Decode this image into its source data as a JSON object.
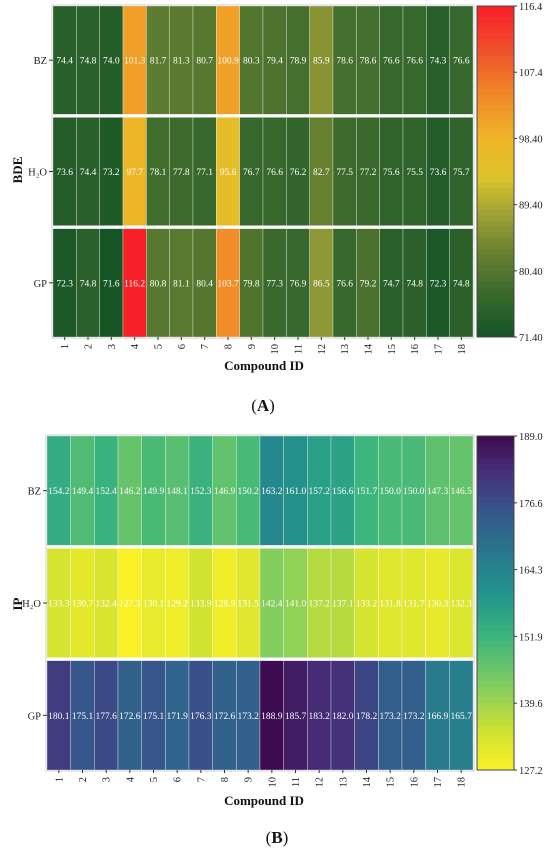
{
  "chart_data": [
    {
      "type": "heatmap",
      "panel_label": "A",
      "ylabel": "BDE",
      "xlabel": "Compound ID",
      "categories": [
        "1",
        "2",
        "3",
        "4",
        "5",
        "6",
        "7",
        "8",
        "9",
        "10",
        "11",
        "12",
        "13",
        "14",
        "15",
        "16",
        "17",
        "18"
      ],
      "rows": [
        "BZ",
        "H<sub>2</sub>O",
        "GP"
      ],
      "row_labels": [
        "BZ",
        "H₂O",
        "GP"
      ],
      "values": [
        [
          74.4,
          74.8,
          74.0,
          101.3,
          81.7,
          81.3,
          80.7,
          100.9,
          80.3,
          79.4,
          78.9,
          85.9,
          78.6,
          78.6,
          76.6,
          76.6,
          74.3,
          76.6
        ],
        [
          73.6,
          74.4,
          73.2,
          97.7,
          78.1,
          77.8,
          77.1,
          95.6,
          76.7,
          76.6,
          76.2,
          82.7,
          77.5,
          77.2,
          75.6,
          75.5,
          73.6,
          75.7
        ],
        [
          72.3,
          74.8,
          71.6,
          116.2,
          80.8,
          81.1,
          80.4,
          103.7,
          79.8,
          77.3,
          76.9,
          86.5,
          76.6,
          79.2,
          74.7,
          74.8,
          72.3,
          74.8
        ]
      ],
      "value_labels": [
        [
          "74.4",
          "74.8",
          "74.0",
          "101.3",
          "81.7",
          "81.3",
          "80.7",
          "100.9",
          "80.3",
          "79.4",
          "78.9",
          "85.9",
          "78.6",
          "78.6",
          "76.6",
          "76.6",
          "74.3",
          "76.6"
        ],
        [
          "73.6",
          "74.4",
          "73.2",
          "97.7",
          "78.1",
          "77.8",
          "77.1",
          "95.6",
          "76.7",
          "76.6",
          "76.2",
          "82.7",
          "77.5",
          "77.2",
          "75.6",
          "75.5",
          "73.6",
          "75.7"
        ],
        [
          "72.3",
          "74.8",
          "71.6",
          "116.2",
          "80.8",
          "81.1",
          "80.4",
          "103.7",
          "79.8",
          "77.3",
          "76.9",
          "86.5",
          "76.6",
          "79.2",
          "74.7",
          "74.8",
          "72.3",
          "74.8"
        ]
      ],
      "colorbar": {
        "min": 71.4,
        "max": 116.4,
        "ticks": [
          "116.4",
          "107.4",
          "98.40",
          "89.40",
          "80.40",
          "71.40"
        ],
        "colormap": "green-yellow-red"
      }
    },
    {
      "type": "heatmap",
      "panel_label": "B",
      "ylabel": "IP",
      "xlabel": "Compound ID",
      "categories": [
        "1",
        "2",
        "3",
        "4",
        "5",
        "6",
        "7",
        "8",
        "9",
        "10",
        "11",
        "12",
        "13",
        "14",
        "15",
        "16",
        "17",
        "18"
      ],
      "row_labels": [
        "BZ",
        "H₂O",
        "GP"
      ],
      "values": [
        [
          154.2,
          149.4,
          152.4,
          146.2,
          149.9,
          148.1,
          152.3,
          146.9,
          150.2,
          163.2,
          161.0,
          157.2,
          156.6,
          151.7,
          150.0,
          150.0,
          147.3,
          146.5
        ],
        [
          133.3,
          130.7,
          132.4,
          127.3,
          130.1,
          129.2,
          133.9,
          128.9,
          131.5,
          142.4,
          141.0,
          137.2,
          137.1,
          133.2,
          131.8,
          131.7,
          130.3,
          132.3
        ],
        [
          180.1,
          175.1,
          177.6,
          172.6,
          175.1,
          171.9,
          176.3,
          172.6,
          173.2,
          188.9,
          185.7,
          183.2,
          182.0,
          178.2,
          173.2,
          173.2,
          166.9,
          165.7
        ]
      ],
      "value_labels": [
        [
          "154.2",
          "149.4",
          "152.4",
          "146.2",
          "149.9",
          "148.1",
          "152.3",
          "146.9",
          "150.2",
          "163.2",
          "161.0",
          "157.2",
          "156.6",
          "151.7",
          "150.0",
          "150.0",
          "147.3",
          "146.5"
        ],
        [
          "133.3",
          "130.7",
          "132.4",
          "127.3",
          "130.1",
          "129.2",
          "133.9",
          "128.9",
          "131.5",
          "142.4",
          "141.0",
          "137.2",
          "137.1",
          "133.2",
          "131.8",
          "131.7",
          "130.3",
          "132.3"
        ],
        [
          "180.1",
          "175.1",
          "177.6",
          "172.6",
          "175.1",
          "171.9",
          "176.3",
          "172.6",
          "173.2",
          "188.9",
          "185.7",
          "183.2",
          "182.0",
          "178.2",
          "173.2",
          "173.2",
          "166.9",
          "165.7"
        ]
      ],
      "colorbar": {
        "min": 127.2,
        "max": 189.0,
        "ticks": [
          "189.0",
          "176.6",
          "164.3",
          "151.9",
          "139.6",
          "127.2"
        ],
        "colormap": "viridis"
      }
    }
  ]
}
